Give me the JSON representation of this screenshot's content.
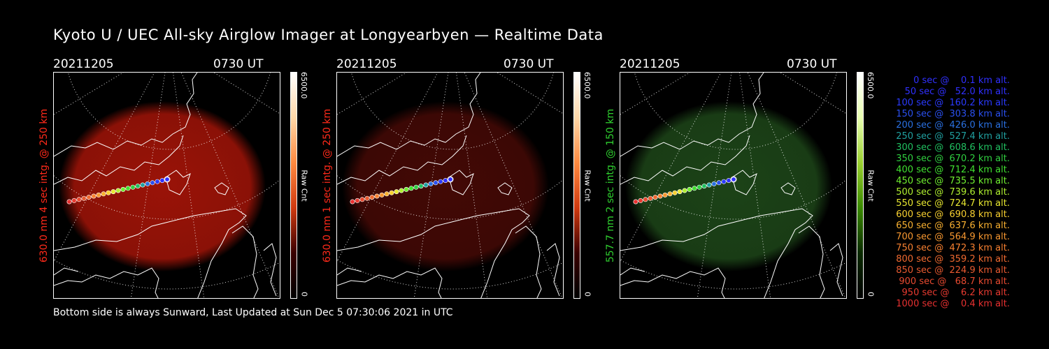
{
  "title": "Kyoto U / UEC All-sky Airglow Imager at Longyearbyen — Realtime Data",
  "panels": [
    {
      "date": "20211205",
      "time": "0730 UT",
      "side_label": "630.0 nm 4 sec intg. @ 250 km",
      "side_color": "#ff2a1a",
      "glow_color": "#a21408",
      "glow_strength": 0.95,
      "colorbar_top": "6500.0",
      "colorbar_mid": "Raw Cnt",
      "colorbar_bottom": "0",
      "colorbar_gradient": [
        "#ffffff",
        "#ffd8a8",
        "#ff8a40",
        "#d03a10",
        "#3a0000",
        "#000000"
      ]
    },
    {
      "date": "20211205",
      "time": "0730 UT",
      "side_label": "630.0 nm 1 sec intg. @ 250 km",
      "side_color": "#ff2a1a",
      "glow_color": "#4a0a06",
      "glow_strength": 0.9,
      "colorbar_top": "6500.0",
      "colorbar_mid": "Raw Cnt",
      "colorbar_bottom": "0",
      "colorbar_gradient": [
        "#ffffff",
        "#ffd8a8",
        "#ff8a40",
        "#d03a10",
        "#3a0000",
        "#000000"
      ]
    },
    {
      "date": "20211205",
      "time": "0730 UT",
      "side_label": "557.7 nm 2 sec intg. @ 150 km",
      "side_color": "#2fd02f",
      "glow_color": "#1f4a1a",
      "glow_strength": 0.9,
      "colorbar_top": "6500.0",
      "colorbar_mid": "Raw Cnt",
      "colorbar_bottom": "0",
      "colorbar_gradient": [
        "#ffffff",
        "#e8ffb0",
        "#9ad030",
        "#3a8a00",
        "#0a2a00",
        "#000000"
      ]
    }
  ],
  "footer": "Bottom side is always Sunward, Last Updated at Sun Dec  5 07:30:06 2021 in UTC",
  "legend": [
    {
      "text": "0 sec @    0.1 km alt.",
      "color": "#3030ff"
    },
    {
      "text": "50 sec @   52.0 km alt.",
      "color": "#3030ff"
    },
    {
      "text": "100 sec @  160.2 km alt.",
      "color": "#2a3aff"
    },
    {
      "text": "150 sec @  303.8 km alt.",
      "color": "#2a50f0"
    },
    {
      "text": "200 sec @  426.0 km alt.",
      "color": "#2a70e0"
    },
    {
      "text": "250 sec @  527.4 km alt.",
      "color": "#20a0a0"
    },
    {
      "text": "300 sec @  608.6 km alt.",
      "color": "#20c060"
    },
    {
      "text": "350 sec @  670.2 km alt.",
      "color": "#30d040"
    },
    {
      "text": "400 sec @  712.4 km alt.",
      "color": "#40e030"
    },
    {
      "text": "450 sec @  735.5 km alt.",
      "color": "#70f030"
    },
    {
      "text": "500 sec @  739.6 km alt.",
      "color": "#b0f030"
    },
    {
      "text": "550 sec @  724.7 km alt.",
      "color": "#e8e830"
    },
    {
      "text": "600 sec @  690.8 km alt.",
      "color": "#f8d030"
    },
    {
      "text": "650 sec @  637.6 km alt.",
      "color": "#f8b030"
    },
    {
      "text": "700 sec @  564.9 km alt.",
      "color": "#f89830"
    },
    {
      "text": "750 sec @  472.3 km alt.",
      "color": "#f88030"
    },
    {
      "text": "800 sec @  359.2 km alt.",
      "color": "#f06a30"
    },
    {
      "text": "850 sec @  224.9 km alt.",
      "color": "#e85a30"
    },
    {
      "text": "900 sec @   68.7 km alt.",
      "color": "#e84a30"
    },
    {
      "text": "950 sec @    6.2 km alt.",
      "color": "#e83a30"
    },
    {
      "text": "1000 sec @    0.4 km alt.",
      "color": "#e83030"
    }
  ]
}
